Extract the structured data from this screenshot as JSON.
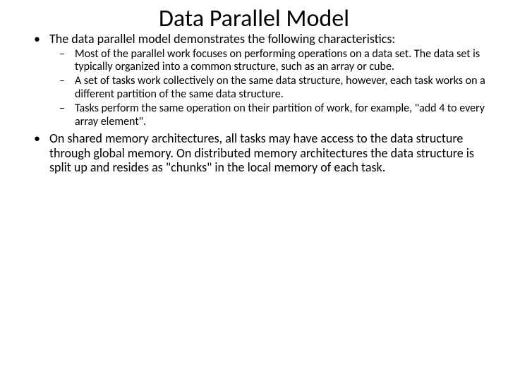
{
  "slide": {
    "title": "Data Parallel Model",
    "title_fontsize": 34,
    "title_color": "#000000",
    "background_color": "#ffffff",
    "body_color": "#000000",
    "bullets": {
      "level1": [
        {
          "text": "The data parallel model demonstrates the following characteristics:",
          "sub": [
            "Most of the parallel work focuses on performing operations on a data set. The data set is typically organized into a common structure, such as an array or cube.",
            "A set of tasks work collectively on the same data structure, however, each task works on a different partition of the same data structure.",
            "Tasks perform the same operation on their partition of work, for example, \"add 4 to every array element\"."
          ]
        },
        {
          "text": "On shared memory architectures, all tasks may have access to the data structure through global memory. On distributed memory architectures the data structure is split up and resides as \"chunks\" in the local memory of each task.",
          "sub": []
        }
      ],
      "level1_fontsize": 18,
      "level2_fontsize": 16,
      "level1_marker": "•",
      "level2_marker": "–"
    }
  }
}
